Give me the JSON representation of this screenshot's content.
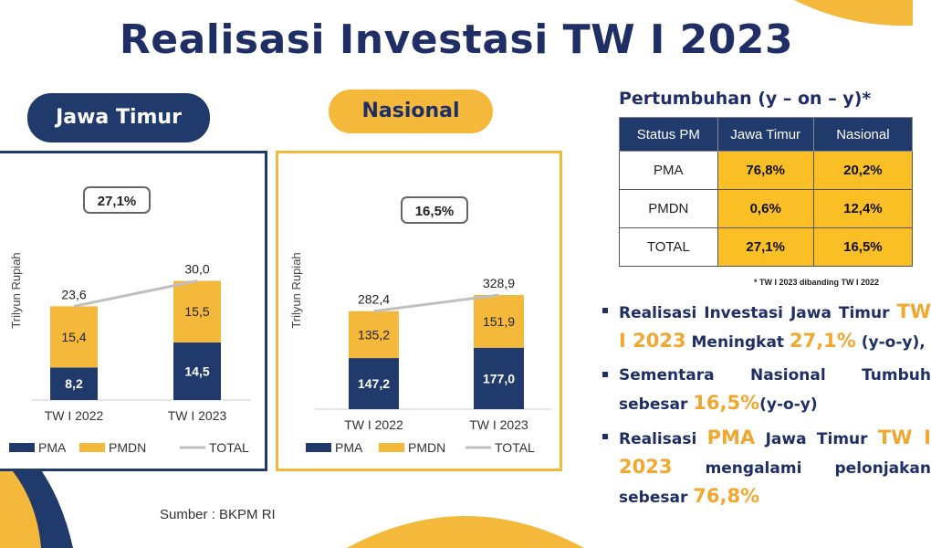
{
  "title": "Realisasi Investasi TW I 2023",
  "colors": {
    "navy": "#1f3a6b",
    "gold": "#f4b83b",
    "line": "#bfbfbf",
    "table_value": "#f9bf24"
  },
  "chart_data": [
    {
      "type": "bar",
      "stacked": true,
      "title": "Jawa Timur",
      "ylabel": "Trilyun Rupiah",
      "categories": [
        "TW I 2022",
        "TW I 2023"
      ],
      "series": [
        {
          "name": "PMA",
          "values": [
            8.2,
            14.5
          ],
          "labels": [
            "8,2",
            "14,5"
          ]
        },
        {
          "name": "PMDN",
          "values": [
            15.4,
            15.5
          ],
          "labels": [
            "15,4",
            "15,5"
          ]
        },
        {
          "name": "TOTAL",
          "values": [
            23.6,
            30.0
          ],
          "labels": [
            "23,6",
            "30,0"
          ]
        }
      ],
      "growth_label": "27,1%",
      "legend": [
        "PMA",
        "PMDN",
        "TOTAL"
      ]
    },
    {
      "type": "bar",
      "stacked": true,
      "title": "Nasional",
      "ylabel": "Trilyun Rupiah",
      "categories": [
        "TW I 2022",
        "TW I 2023"
      ],
      "series": [
        {
          "name": "PMA",
          "values": [
            147.2,
            177.0
          ],
          "labels": [
            "147,2",
            "177,0"
          ]
        },
        {
          "name": "PMDN",
          "values": [
            135.2,
            151.9
          ],
          "labels": [
            "135,2",
            "151,9"
          ]
        },
        {
          "name": "TOTAL",
          "values": [
            282.4,
            328.9
          ],
          "labels": [
            "282,4",
            "328,9"
          ]
        }
      ],
      "growth_label": "16,5%",
      "legend": [
        "PMA",
        "PMDN",
        "TOTAL"
      ]
    }
  ],
  "source": "Sumber : BKPM RI",
  "growth_table": {
    "title": "Pertumbuhan (y – on – y)*",
    "headers": [
      "Status PM",
      "Jawa Timur",
      "Nasional"
    ],
    "rows": [
      [
        "PMA",
        "76,8%",
        "20,2%"
      ],
      [
        "PMDN",
        "0,6%",
        "12,4%"
      ],
      [
        "TOTAL",
        "27,1%",
        "16,5%"
      ]
    ],
    "note": "* TW I 2023 dibanding TW I 2022"
  },
  "bullets": [
    {
      "parts": [
        {
          "text": "Realisasi Investasi Jawa Timur ",
          "hl": false
        },
        {
          "text": "TW I 2023",
          "hl": true
        },
        {
          "text": " Meningkat ",
          "hl": false
        },
        {
          "text": "27,1%",
          "hl": true
        },
        {
          "text": " (y-o-y),",
          "hl": false
        }
      ]
    },
    {
      "parts": [
        {
          "text": "Sementara Nasional Tumbuh sebesar ",
          "hl": false
        },
        {
          "text": "16,5%",
          "hl": true
        },
        {
          "text": "(y-o-y)",
          "hl": false
        }
      ]
    },
    {
      "parts": [
        {
          "text": "Realisasi ",
          "hl": false
        },
        {
          "text": "PMA",
          "hl": true
        },
        {
          "text": " Jawa Timur ",
          "hl": false
        },
        {
          "text": "TW I 2023",
          "hl": true
        },
        {
          "text": " mengalami pelonjakan sebesar ",
          "hl": false
        },
        {
          "text": "76,8%",
          "hl": true
        }
      ]
    }
  ]
}
